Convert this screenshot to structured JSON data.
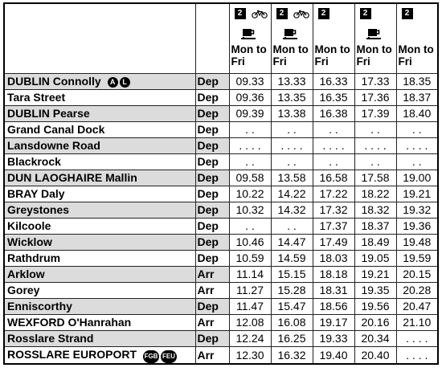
{
  "columns": [
    {
      "service": "2",
      "bike": true,
      "catering": true,
      "days": "Mon to Fri"
    },
    {
      "service": "2",
      "bike": true,
      "catering": true,
      "days": "Mon to Fri"
    },
    {
      "service": "2",
      "bike": false,
      "catering": false,
      "days": "Mon to Fri"
    },
    {
      "service": "2",
      "bike": false,
      "catering": true,
      "days": "Mon to Fri"
    },
    {
      "service": "2",
      "bike": false,
      "catering": false,
      "days": "Mon to Fri"
    }
  ],
  "rows": [
    {
      "station": "DUBLIN Connolly",
      "badges": [
        "A",
        "L"
      ],
      "type": "Dep",
      "times": [
        "09.33",
        "13.33",
        "16.33",
        "17.33",
        "18.35"
      ]
    },
    {
      "station": "Tara Street",
      "badges": [],
      "type": "Dep",
      "times": [
        "09.36",
        "13.35",
        "16.35",
        "17.36",
        "18.37"
      ]
    },
    {
      "station": "DUBLIN Pearse",
      "badges": [],
      "type": "Dep",
      "times": [
        "09.39",
        "13.38",
        "16.38",
        "17.39",
        "18.40"
      ]
    },
    {
      "station": "Grand Canal Dock",
      "badges": [],
      "type": "Dep",
      "times": [
        ". .",
        ". .",
        ". .",
        ". .",
        ". ."
      ]
    },
    {
      "station": "Lansdowne Road",
      "badges": [],
      "type": "Dep",
      "times": [
        ". . . .",
        ". . . .",
        ". . . .",
        ". . . .",
        ". . . ."
      ]
    },
    {
      "station": "Blackrock",
      "badges": [],
      "type": "Dep",
      "times": [
        ". .",
        ". .",
        ". .",
        ". .",
        ". ."
      ]
    },
    {
      "station": "DUN LAOGHAIRE Mallin",
      "badges": [],
      "type": "Dep",
      "times": [
        "09.58",
        "13.58",
        "16.58",
        "17.58",
        "19.00"
      ]
    },
    {
      "station": "BRAY Daly",
      "badges": [],
      "type": "Dep",
      "times": [
        "10.22",
        "14.22",
        "17.22",
        "18.22",
        "19.21"
      ]
    },
    {
      "station": "Greystones",
      "badges": [],
      "type": "Dep",
      "times": [
        "10.32",
        "14.32",
        "17.32",
        "18.32",
        "19.32"
      ]
    },
    {
      "station": "Kilcoole",
      "badges": [],
      "type": "Dep",
      "times": [
        ". .",
        ". .",
        "17.37",
        "18.37",
        "19.36"
      ]
    },
    {
      "station": "Wicklow",
      "badges": [],
      "type": "Dep",
      "times": [
        "10.46",
        "14.47",
        "17.49",
        "18.49",
        "19.48"
      ]
    },
    {
      "station": "Rathdrum",
      "badges": [],
      "type": "Dep",
      "times": [
        "10.59",
        "14.59",
        "18.03",
        "19.05",
        "19.59"
      ]
    },
    {
      "station": "Arklow",
      "badges": [],
      "type": "Arr",
      "times": [
        "11.14",
        "15.15",
        "18.18",
        "19.21",
        "20.15"
      ]
    },
    {
      "station": "Gorey",
      "badges": [],
      "type": "Arr",
      "times": [
        "11.27",
        "15.28",
        "18.31",
        "19.35",
        "20.28"
      ]
    },
    {
      "station": "Enniscorthy",
      "badges": [],
      "type": "Dep",
      "times": [
        "11.47",
        "15.47",
        "18.56",
        "19.56",
        "20.47"
      ]
    },
    {
      "station": "WEXFORD O'Hanrahan",
      "badges": [],
      "type": "Arr",
      "times": [
        "12.08",
        "16.08",
        "19.17",
        "20.16",
        "21.10"
      ]
    },
    {
      "station": "Rosslare Strand",
      "badges": [],
      "type": "Dep",
      "times": [
        "12.24",
        "16.25",
        "19.33",
        "20.34",
        ". . . ."
      ]
    },
    {
      "station": "ROSSLARE EUROPORT",
      "badges": [
        "FGB",
        "FEU"
      ],
      "type": "Arr",
      "times": [
        "12.30",
        "16.32",
        "19.40",
        "20.40",
        ". . . ."
      ]
    }
  ]
}
